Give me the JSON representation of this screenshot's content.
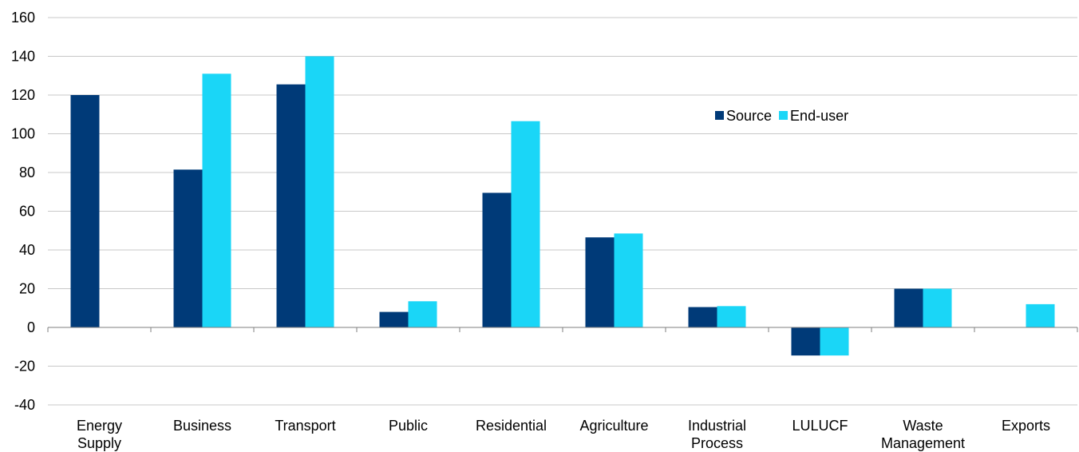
{
  "chart_data": {
    "type": "bar",
    "title": "",
    "xlabel": "",
    "ylabel": "",
    "categories": [
      [
        "Energy",
        "Supply"
      ],
      [
        "Business"
      ],
      [
        "Transport"
      ],
      [
        "Public"
      ],
      [
        "Residential"
      ],
      [
        "Agriculture"
      ],
      [
        "Industrial",
        "Process"
      ],
      [
        "LULUCF"
      ],
      [
        "Waste",
        "Management"
      ],
      [
        "Exports"
      ]
    ],
    "series": [
      {
        "name": "Source",
        "color": "#003a78",
        "values": [
          120,
          81.5,
          125.5,
          8,
          69.5,
          46.5,
          10.5,
          -14.5,
          20,
          null
        ]
      },
      {
        "name": "End-user",
        "color": "#1ad6f7",
        "values": [
          null,
          131,
          140,
          13.5,
          106.5,
          48.5,
          11,
          -14.5,
          20,
          12
        ]
      }
    ],
    "ylim": [
      -40,
      160
    ],
    "yticks": [
      160,
      140,
      120,
      100,
      80,
      60,
      40,
      20,
      0,
      -20,
      -40
    ],
    "grid": true,
    "legend_position": "upper-right-inside"
  }
}
